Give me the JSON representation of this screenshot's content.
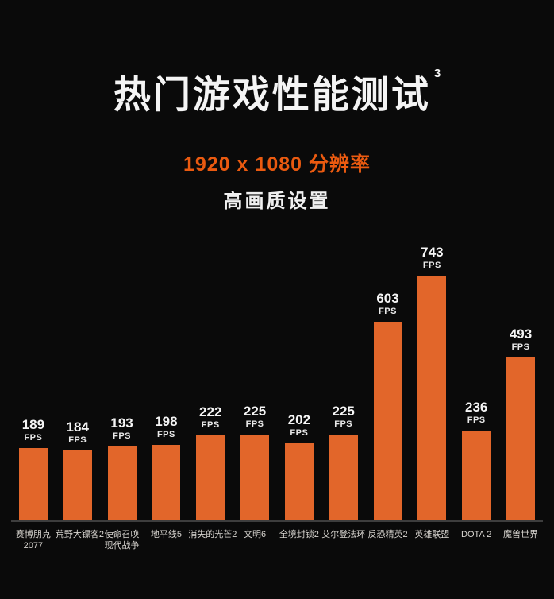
{
  "header": {
    "title": "热门游戏性能测试",
    "superscript": "3",
    "resolution": "1920 x 1080 分辨率",
    "quality_setting": "高画质设置"
  },
  "colors": {
    "background": "#0A0A0A",
    "bar_orange": "#E2662A",
    "accent_orange": "#EA5A10",
    "axis_line": "#3D3D3D",
    "title_white": "#F4F4F4",
    "category_label_gray": "#D8D5D0"
  },
  "chart_data": {
    "type": "bar",
    "title": "热门游戏性能测试",
    "subtitle": "1920 x 1080 分辨率 · 高画质设置",
    "unit": "FPS",
    "ylabel": "FPS",
    "xlabel": "",
    "grid": false,
    "legend_position": "none",
    "ylim": [
      0,
      800
    ],
    "categories": [
      "赛博朋克\n2077",
      "荒野大镖客2",
      "使命召唤\n现代战争",
      "地平线5",
      "消失的光芒2",
      "文明6",
      "全境封锁2",
      "艾尔登法环",
      "反恐精英2",
      "英雄联盟",
      "DOTA 2",
      "魔兽世界"
    ],
    "values": [
      189,
      184,
      193,
      198,
      222,
      225,
      202,
      225,
      603,
      743,
      236,
      493
    ]
  }
}
